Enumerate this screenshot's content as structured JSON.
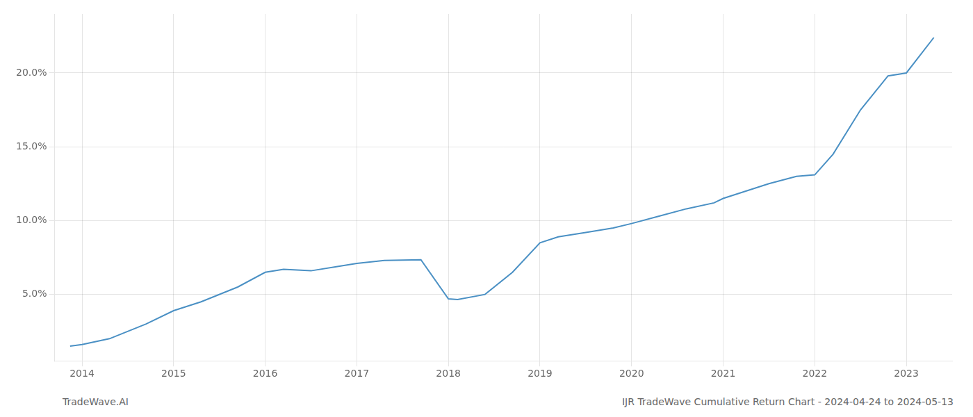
{
  "chart_data": {
    "type": "line",
    "x": [
      2013.87,
      2014.0,
      2014.3,
      2014.7,
      2015.0,
      2015.3,
      2015.7,
      2016.0,
      2016.2,
      2016.5,
      2016.8,
      2017.0,
      2017.3,
      2017.7,
      2018.0,
      2018.1,
      2018.4,
      2018.7,
      2019.0,
      2019.2,
      2019.5,
      2019.8,
      2020.0,
      2020.3,
      2020.6,
      2020.9,
      2021.0,
      2021.2,
      2021.5,
      2021.8,
      2022.0,
      2022.2,
      2022.5,
      2022.8,
      2023.0,
      2023.3
    ],
    "values": [
      1.5,
      1.6,
      2.0,
      3.0,
      3.9,
      4.5,
      5.5,
      6.5,
      6.7,
      6.6,
      6.9,
      7.1,
      7.3,
      7.35,
      4.7,
      4.65,
      5.0,
      6.5,
      8.5,
      8.9,
      9.2,
      9.5,
      9.8,
      10.3,
      10.8,
      11.2,
      11.5,
      11.9,
      12.5,
      13.0,
      13.1,
      14.5,
      17.5,
      19.8,
      20.0,
      22.4
    ],
    "color": "#4a90c4",
    "xlim": [
      2013.7,
      2023.5
    ],
    "xticks": [
      2014,
      2015,
      2016,
      2017,
      2018,
      2019,
      2020,
      2021,
      2022,
      2023
    ],
    "ylim": [
      0.5,
      24.0
    ],
    "yticks": [
      {
        "value": 5.0,
        "label": "5.0%"
      },
      {
        "value": 10.0,
        "label": "10.0%"
      },
      {
        "value": 15.0,
        "label": "15.0%"
      },
      {
        "value": 20.0,
        "label": "20.0%"
      }
    ],
    "grid": true,
    "annotations": [
      "TradeWave.AI",
      "IJR TradeWave Cumulative Return Chart - 2024-04-24 to 2024-05-13"
    ]
  }
}
